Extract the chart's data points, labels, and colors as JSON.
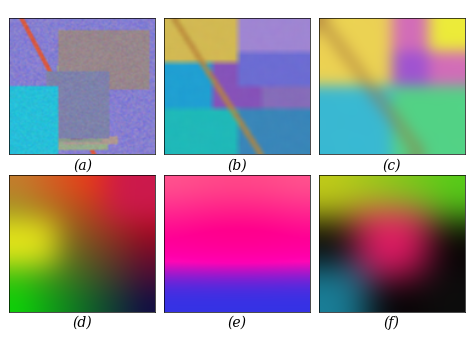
{
  "labels": [
    "(a)",
    "(b)",
    "(c)",
    "(d)",
    "(e)",
    "(f)"
  ],
  "figsize": [
    4.74,
    3.54
  ],
  "dpi": 100,
  "bg_color": "#ffffff",
  "label_fontsize": 10
}
